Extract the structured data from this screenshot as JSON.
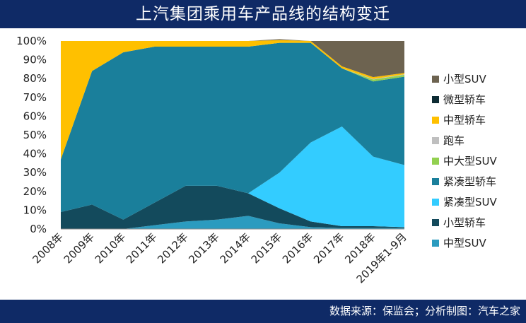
{
  "title": "上汽集团乘用车产品线的结构变迁",
  "source": "数据来源：保监会；分析制图：汽车之家",
  "chart_data": {
    "type": "area",
    "stacked": true,
    "percent": true,
    "categories": [
      "2008年",
      "2009年",
      "2010年",
      "2011年",
      "2012年",
      "2013年",
      "2014年",
      "2015年",
      "2016年",
      "2017年",
      "2018年",
      "2019年1-9月"
    ],
    "yticks": [
      "0%",
      "10%",
      "20%",
      "30%",
      "40%",
      "50%",
      "60%",
      "70%",
      "80%",
      "90%",
      "100%"
    ],
    "ylim": [
      0,
      100
    ],
    "legend_position": "right",
    "series": [
      {
        "name": "中型SUV",
        "color": "#2b9bbf",
        "values": [
          0,
          0,
          0,
          2,
          4,
          5,
          7,
          3,
          1,
          0.5,
          0.5,
          0.5
        ]
      },
      {
        "name": "小型轿车",
        "color": "#134a5c",
        "values": [
          9,
          13,
          5,
          12,
          19,
          18,
          12,
          8,
          3,
          1,
          1,
          0.5
        ]
      },
      {
        "name": "紧凑型SUV",
        "color": "#33ccff",
        "values": [
          0,
          0,
          0,
          0,
          0,
          0,
          0,
          19,
          42,
          53,
          37,
          33
        ]
      },
      {
        "name": "紧凑型轿车",
        "color": "#1a7f9b",
        "values": [
          28,
          71,
          89,
          83,
          74,
          74,
          78,
          69,
          53,
          31,
          40,
          47
        ]
      },
      {
        "name": "中大型SUV",
        "color": "#92d050",
        "values": [
          0,
          0,
          0,
          0,
          0,
          0,
          0,
          0,
          0,
          0,
          1,
          1
        ]
      },
      {
        "name": "跑车",
        "color": "#bfbfbf",
        "values": [
          0,
          0,
          0,
          0,
          0,
          0,
          0,
          0,
          0,
          0,
          0.3,
          0.3
        ]
      },
      {
        "name": "中型轿车",
        "color": "#ffc000",
        "values": [
          63,
          16,
          6,
          3,
          3,
          3,
          3,
          1.5,
          1,
          1,
          1,
          0.7
        ]
      },
      {
        "name": "微型轿车",
        "color": "#0d2b33",
        "values": [
          0,
          0,
          0,
          0,
          0,
          0,
          0,
          0,
          0,
          0,
          0,
          0
        ]
      },
      {
        "name": "小型SUV",
        "color": "#6d6350",
        "values": [
          0,
          0,
          0,
          0,
          0,
          0,
          0,
          0.5,
          0,
          13.5,
          19.2,
          17
        ]
      }
    ],
    "legend_order": [
      "小型SUV",
      "微型轿车",
      "中型轿车",
      "跑车",
      "中大型SUV",
      "紧凑型轿车",
      "紧凑型SUV",
      "小型轿车",
      "中型SUV"
    ]
  }
}
